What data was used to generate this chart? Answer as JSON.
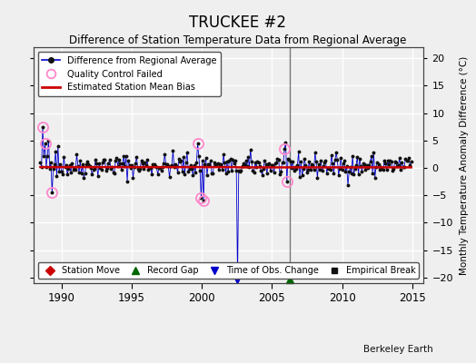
{
  "title": "TRUCKEE #2",
  "subtitle": "Difference of Station Temperature Data from Regional Average",
  "ylabel": "Monthly Temperature Anomaly Difference (°C)",
  "xlabel_credit": "Berkeley Earth",
  "xlim": [
    1988.0,
    2015.8
  ],
  "ylim": [
    -21,
    22
  ],
  "yticks": [
    -20,
    -15,
    -10,
    -5,
    0,
    5,
    10,
    15,
    20
  ],
  "xticks": [
    1990,
    1995,
    2000,
    2005,
    2010,
    2015
  ],
  "bg_color": "#efefef",
  "plot_bg_color": "#efefef",
  "grid_color": "#ffffff",
  "line_color": "#0000cc",
  "bias_color": "#cc0000",
  "qc_color": "#ff88cc",
  "time_of_obs_x": 2002.5,
  "record_gap_x": 2006.25,
  "vertical_line_x": 2006.25,
  "seed": 42,
  "start_year": 1988.5,
  "end_year": 2014.92
}
